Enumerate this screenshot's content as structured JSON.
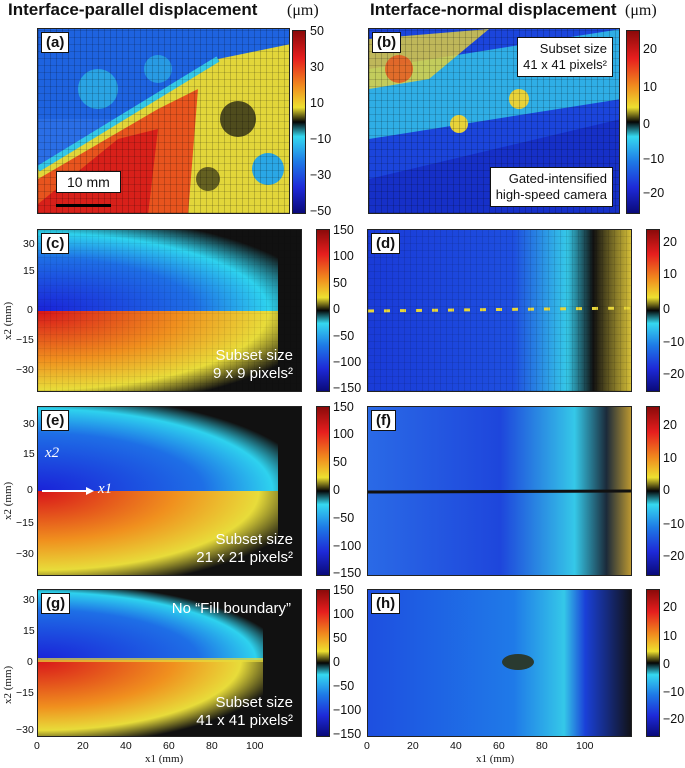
{
  "headers": {
    "left_title": "Interface-parallel displacement",
    "right_title": "Interface-normal displacement",
    "unit_left": "(μm)",
    "unit_right": "(μm)"
  },
  "panels": {
    "a": {
      "label": "(a)",
      "scale_bar": "10 mm"
    },
    "b": {
      "label": "(b)",
      "box_top": [
        "Subset size",
        "41 x 41 pixels²"
      ],
      "box_bottom": [
        "Gated-intensified",
        "high-speed camera"
      ]
    },
    "c": {
      "label": "(c)",
      "subset": [
        "Subset size",
        "9 x 9 pixels²"
      ]
    },
    "d": {
      "label": "(d)"
    },
    "e": {
      "label": "(e)",
      "subset": [
        "Subset size",
        "21 x 21 pixels²"
      ],
      "axis_x1": "x1",
      "axis_x2": "x2"
    },
    "f": {
      "label": "(f)"
    },
    "g": {
      "label": "(g)",
      "note": "No “Fill boundary”",
      "subset": [
        "Subset size",
        "41 x 41 pixels²"
      ]
    },
    "h": {
      "label": "(h)"
    }
  },
  "colorbars": {
    "a": [
      "50",
      "30",
      "10",
      "−10",
      "−30",
      "−50"
    ],
    "b": [
      "20",
      "10",
      "0",
      "−10",
      "−20"
    ],
    "cd_left": [
      "150",
      "100",
      "50",
      "0",
      "−50",
      "−100",
      "−150"
    ],
    "cd_right": [
      "20",
      "10",
      "0",
      "−10",
      "−20"
    ]
  },
  "axes": {
    "y_ticks_ce": [
      "30",
      "15",
      "0",
      "−15",
      "−30"
    ],
    "y_ticks_g": [
      "30",
      "15",
      "0",
      "−15",
      "−30"
    ],
    "x_ticks": [
      "0",
      "20",
      "40",
      "60",
      "80",
      "100"
    ],
    "y_label": "x2 (mm)",
    "x_label": "x1 (mm)"
  },
  "colors": {
    "hot": "#cc1a1a",
    "cold": "#1a2fd6",
    "cyan": "#35c8e8",
    "yellow": "#e8d73a"
  }
}
